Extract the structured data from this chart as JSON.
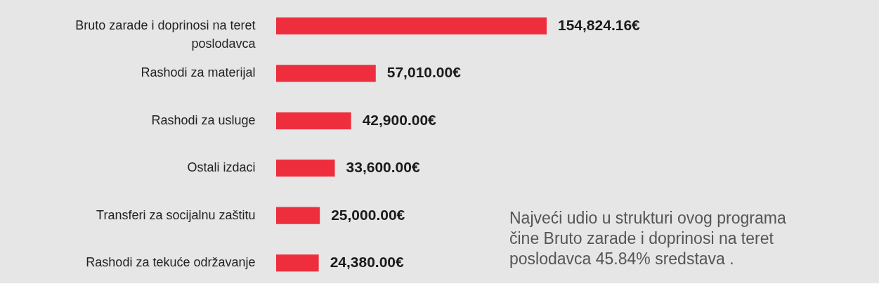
{
  "chart_data": {
    "type": "bar",
    "orientation": "horizontal",
    "categories": [
      "Bruto zarade i doprinosi na teret poslodavca",
      "Rashodi za materijal",
      "Rashodi za usluge",
      "Ostali izdaci",
      "Transferi za socijalnu zaštitu",
      "Rashodi za tekuće održavanje"
    ],
    "values": [
      154824.16,
      57010.0,
      42900.0,
      33600.0,
      25000.0,
      24380.0
    ],
    "color": "#ee2e3d",
    "value_labels": [
      "154,824.16€",
      "57,010.00€",
      "42,900.00€",
      "33,600.00€",
      "25,000.00€",
      "24,380.00€"
    ],
    "annotations": [
      "Najveći udio u strukturi ovog programa čine Bruto zarade i doprinosi na teret poslodavca 45.84% sredstava ."
    ]
  }
}
